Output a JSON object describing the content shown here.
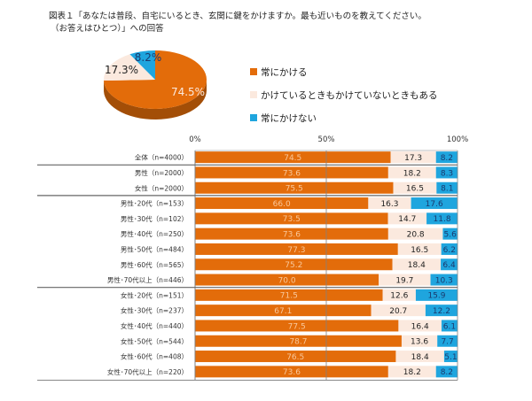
{
  "title": {
    "line1": "図表１「あなたは普段、自宅にいるとき、玄関に鍵をかけますか。最も近いものを教えてください。",
    "line2": "（お答えはひとつ）」への回答"
  },
  "colors": {
    "always": "#E36C0A",
    "sometimes": "#FBE9DE",
    "never": "#1FA5DE",
    "axis": "#808080"
  },
  "chart_data": [
    {
      "type": "pie",
      "title": "",
      "labels": [
        "常にかける",
        "かけているときもかけていないときもある",
        "常にかけない"
      ],
      "values": [
        74.5,
        17.3,
        8.2
      ],
      "value_labels": [
        "74.5%",
        "17.3%",
        "8.2%"
      ],
      "legend_position": "right"
    },
    {
      "type": "bar",
      "orientation": "horizontal",
      "stacked": true,
      "title": "",
      "xlabel": "",
      "ylabel": "",
      "xlim": [
        0,
        100
      ],
      "x_ticks": [
        "0%",
        "50%",
        "100%"
      ],
      "categories": [
        "全体（n=4000）",
        "男性（n=2000）",
        "女性（n=2000）",
        "男性･20代（n=153）",
        "男性･30代（n=102）",
        "男性･40代（n=250）",
        "男性･50代（n=484）",
        "男性･60代（n=565）",
        "男性･70代以上（n=446）",
        "女性･20代（n=151）",
        "女性･30代（n=237）",
        "女性･40代（n=440）",
        "女性･50代（n=544）",
        "女性･60代（n=408）",
        "女性･70代以上（n=220）"
      ],
      "groups_separator_after": [
        0,
        2,
        8
      ],
      "series": [
        {
          "name": "常にかける",
          "values": [
            74.5,
            73.6,
            75.5,
            66.0,
            73.5,
            73.6,
            77.3,
            75.2,
            70.0,
            71.5,
            67.1,
            77.5,
            78.7,
            76.5,
            73.6
          ]
        },
        {
          "name": "かけているときもかけていないときもある",
          "values": [
            17.3,
            18.2,
            16.5,
            16.3,
            14.7,
            20.8,
            16.5,
            18.4,
            19.7,
            12.6,
            20.7,
            16.4,
            13.6,
            18.4,
            18.2
          ]
        },
        {
          "name": "常にかけない",
          "values": [
            8.2,
            8.3,
            8.1,
            17.6,
            11.8,
            5.6,
            6.2,
            6.4,
            10.3,
            15.9,
            12.2,
            6.1,
            7.7,
            5.1,
            8.2
          ]
        }
      ]
    }
  ]
}
